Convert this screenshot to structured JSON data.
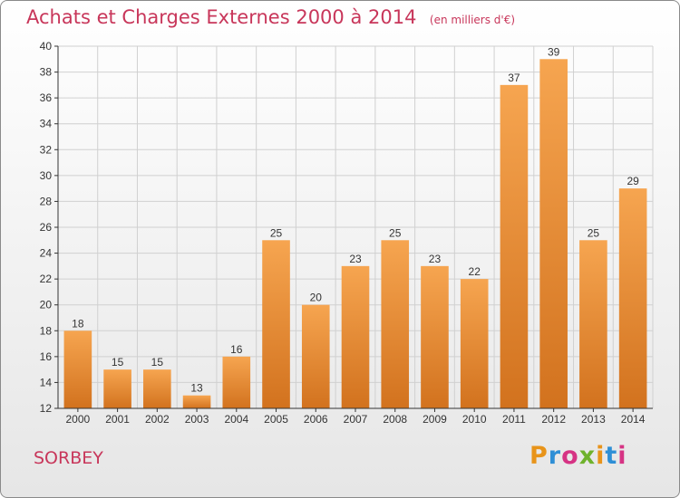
{
  "header": {
    "title": "Achats et Charges Externes 2000 à 2014",
    "subtitle": "(en milliers d'€)"
  },
  "footer": {
    "commune": "SORBEY",
    "logo_text": "Proxiti"
  },
  "colors": {
    "title": "#c8365a",
    "bar_top": "#f6a550",
    "bar_bottom": "#d2721e",
    "axis": "#333333",
    "grid": "#d0d0d0"
  },
  "chart_data": {
    "type": "bar",
    "categories": [
      "2000",
      "2001",
      "2002",
      "2003",
      "2004",
      "2005",
      "2006",
      "2007",
      "2008",
      "2009",
      "2010",
      "2011",
      "2012",
      "2013",
      "2014"
    ],
    "values": [
      18,
      15,
      15,
      13,
      16,
      25,
      20,
      23,
      25,
      23,
      22,
      37,
      39,
      25,
      29
    ],
    "data_labels": [
      "18",
      "15",
      "15",
      "13",
      "16",
      "25",
      "20",
      "23",
      "25",
      "23",
      "22",
      "37",
      "39",
      "25",
      "29"
    ],
    "y_ticks": [
      12,
      14,
      16,
      18,
      20,
      22,
      24,
      26,
      28,
      30,
      32,
      34,
      36,
      38,
      40
    ],
    "ylim": [
      12,
      40
    ],
    "grid": true,
    "legend": "none"
  }
}
